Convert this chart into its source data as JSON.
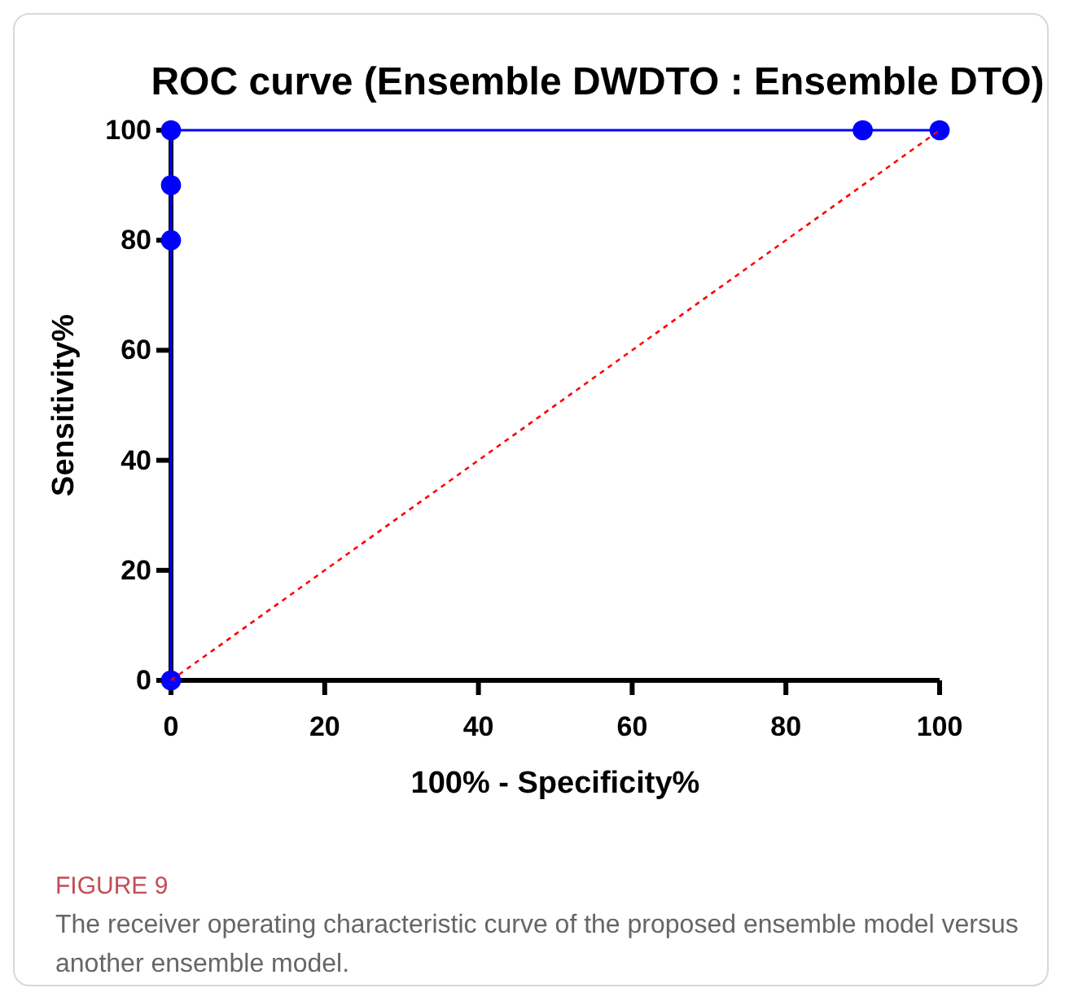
{
  "chart_data": {
    "type": "line",
    "title": "ROC curve (Ensemble DWDTO : Ensemble DTO)",
    "xlabel": "100% - Specificity%",
    "ylabel": "Sensitivity%",
    "series": [
      {
        "color": "#0000ff",
        "x": [
          0,
          0,
          0,
          0,
          90,
          100
        ],
        "values": [
          0,
          80,
          90,
          100,
          100,
          100
        ],
        "marker": "circle",
        "line_style": "solid"
      },
      {
        "color": "#ff0000",
        "x": [
          0,
          100
        ],
        "values": [
          0,
          100
        ],
        "marker": "none",
        "line_style": "dotted"
      }
    ],
    "xlim": [
      0,
      100
    ],
    "ylim": [
      0,
      100
    ],
    "xticks": [
      0,
      20,
      40,
      60,
      80,
      100
    ],
    "yticks": [
      0,
      20,
      40,
      60,
      80,
      100
    ],
    "grid": false,
    "annotations": [
      "FIGURE 9",
      "The receiver operating characteristic curve of the proposed ensemble model versus another ensemble model."
    ]
  }
}
